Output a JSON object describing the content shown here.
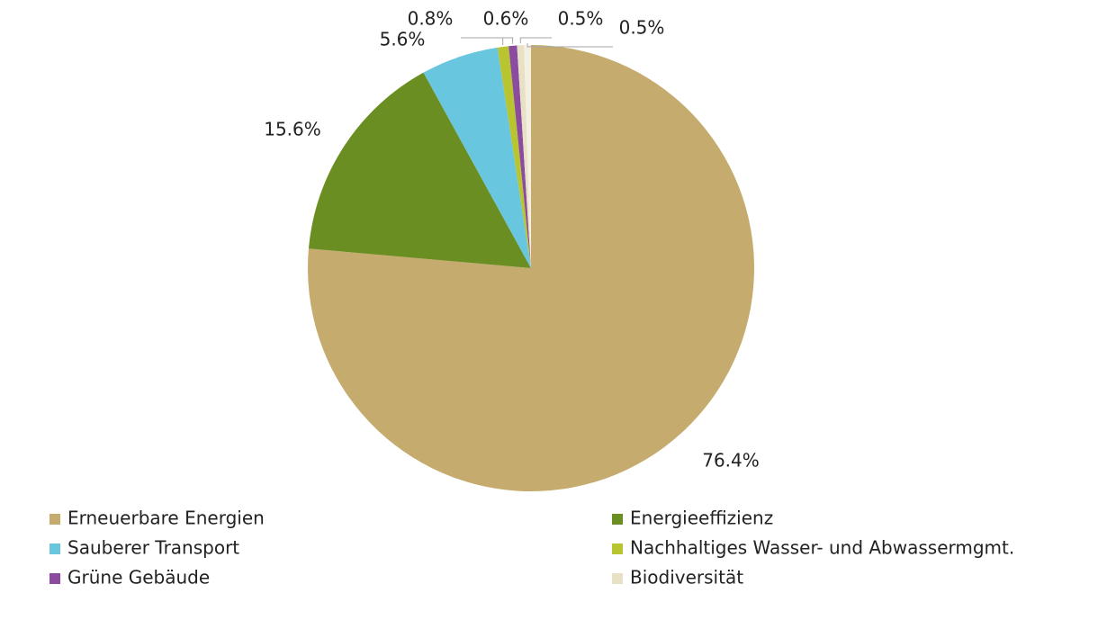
{
  "chart_data": {
    "type": "pie",
    "categories": [
      "Erneuerbare Energien",
      "Energieeffizienz",
      "Sauberer Transport",
      "Nachhaltiges Wasser- und Abwassermgmt.",
      "Grüne Gebäude",
      "Biodiversität",
      null
    ],
    "values": [
      76.4,
      15.6,
      5.6,
      0.8,
      0.6,
      0.5,
      0.5
    ],
    "value_labels": [
      "76.4%",
      "15.6%",
      "5.6%",
      "0.8%",
      "0.6%",
      "0.5%",
      "0.5%"
    ],
    "colors": [
      "#c5ac6e",
      "#6a8e22",
      "#68c6df",
      "#b8c530",
      "#8b4c9f",
      "#e8e1c6",
      "#f3f0e2"
    ],
    "legend": true
  }
}
